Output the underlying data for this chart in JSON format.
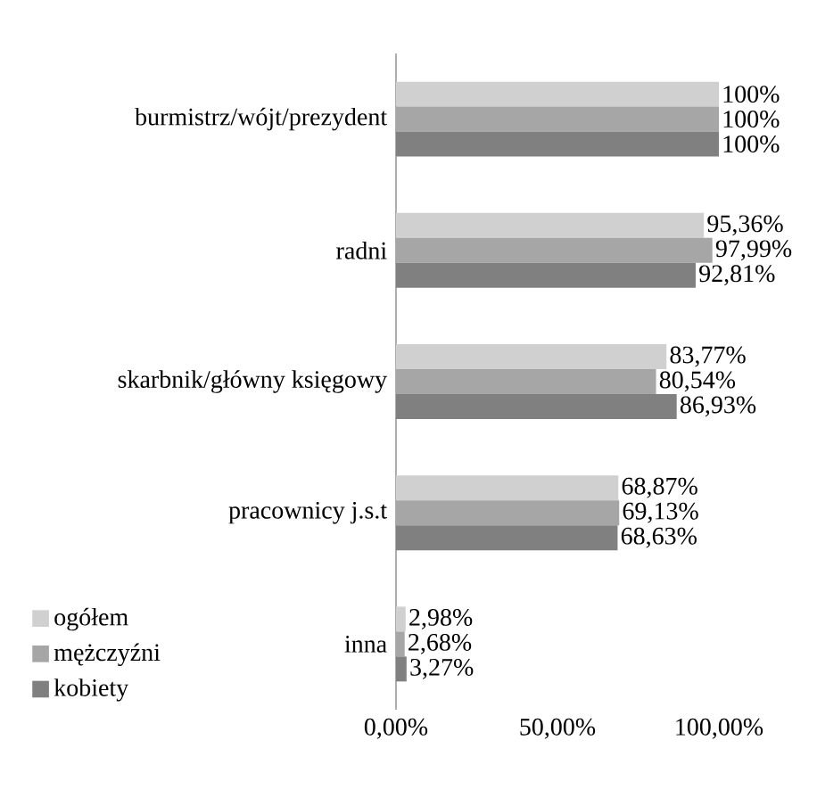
{
  "chart_data": {
    "type": "bar",
    "orientation": "horizontal",
    "categories": [
      "burmistrz/wójt/prezydent",
      "radni",
      "skarbnik/główny księgowy",
      "pracownicy j.s.t",
      "inna"
    ],
    "series": [
      {
        "name": "ogółem",
        "color": "#d0d0d0",
        "values": [
          100,
          95.36,
          83.77,
          68.87,
          2.98
        ],
        "value_labels": [
          "100%",
          "95,36%",
          "83,77%",
          "68,87%",
          "2,98%"
        ]
      },
      {
        "name": "mężczyźni",
        "color": "#a6a6a6",
        "values": [
          100,
          97.99,
          80.54,
          69.13,
          2.68
        ],
        "value_labels": [
          "100%",
          "97,99%",
          "80,54%",
          "69,13%",
          "2,68%"
        ]
      },
      {
        "name": "kobiety",
        "color": "#808080",
        "values": [
          100,
          92.81,
          86.93,
          68.63,
          3.27
        ],
        "value_labels": [
          "100%",
          "92,81%",
          "86,93%",
          "68,63%",
          "3,27%"
        ]
      }
    ],
    "xlim": [
      0,
      100
    ],
    "xticks": [
      {
        "value": 0,
        "label": "0,00%"
      },
      {
        "value": 50,
        "label": "50,00%"
      },
      {
        "value": 100,
        "label": "100,00%"
      }
    ],
    "grid": false,
    "legend": "bottom left"
  }
}
